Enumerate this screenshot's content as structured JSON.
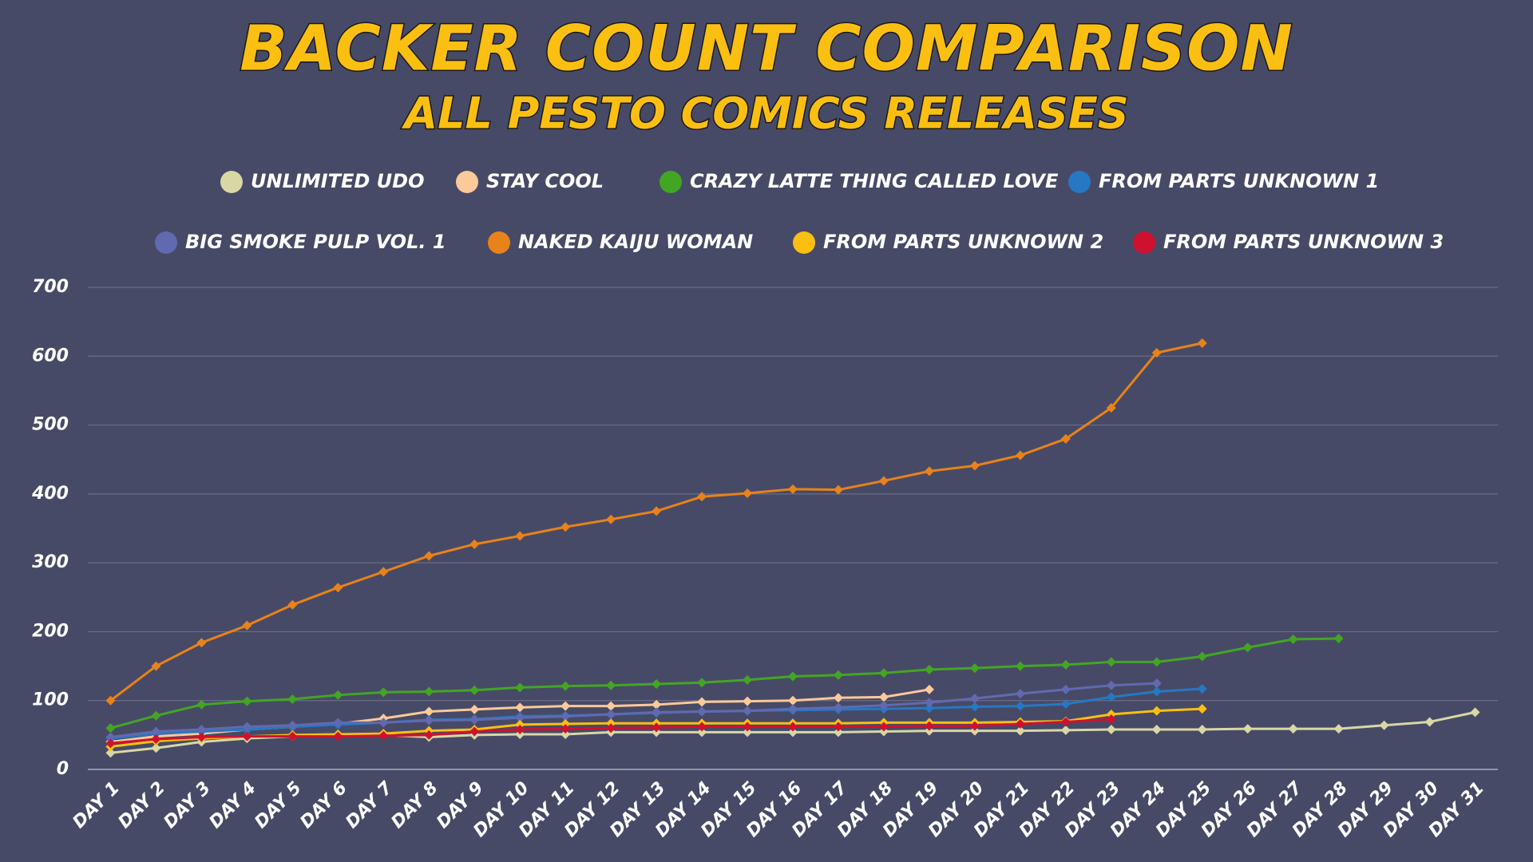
{
  "chart_data": {
    "type": "line",
    "title": "BACKER COUNT COMPARISON",
    "subtitle": "ALL PESTO COMICS RELEASES",
    "categories": [
      "DAY 1",
      "DAY 2",
      "DAY 3",
      "DAY 4",
      "DAY 5",
      "DAY 6",
      "DAY 7",
      "DAY 8",
      "DAY 9",
      "DAY 10",
      "DAY 11",
      "DAY 12",
      "DAY 13",
      "DAY 14",
      "DAY 15",
      "DAY 16",
      "DAY 17",
      "DAY 18",
      "DAY 19",
      "DAY 20",
      "DAY 21",
      "DAY 22",
      "DAY 23",
      "DAY 24",
      "DAY 25",
      "DAY 26",
      "DAY 27",
      "DAY 28",
      "DAY 29",
      "DAY 30",
      "DAY 31"
    ],
    "ylim": [
      0,
      700
    ],
    "yticks": [
      0,
      100,
      200,
      300,
      400,
      500,
      600,
      700
    ],
    "grid": true,
    "legend": "top",
    "series": [
      {
        "name": "UNLIMITED UDO",
        "color": "#d9d7a6",
        "values": [
          24,
          31,
          40,
          45,
          48,
          50,
          50,
          47,
          50,
          51,
          51,
          54,
          54,
          54,
          54,
          54,
          54,
          55,
          56,
          56,
          56,
          57,
          58,
          58,
          58,
          59,
          59,
          59,
          64,
          69,
          83
        ]
      },
      {
        "name": "STAY COOL",
        "color": "#fbc99a",
        "values": [
          40,
          48,
          52,
          58,
          62,
          66,
          74,
          84,
          87,
          90,
          92,
          92,
          94,
          98,
          99,
          100,
          104,
          105,
          116,
          null,
          null,
          null,
          null,
          null,
          null,
          null,
          null,
          null,
          null,
          null,
          null
        ]
      },
      {
        "name": "CRAZY LATTE THING CALLED LOVE",
        "color": "#43a524",
        "values": [
          60,
          78,
          94,
          99,
          102,
          108,
          112,
          113,
          115,
          119,
          121,
          122,
          124,
          126,
          130,
          135,
          137,
          140,
          145,
          147,
          150,
          152,
          156,
          156,
          164,
          177,
          189,
          190,
          null,
          null,
          null
        ]
      },
      {
        "name": "FROM PARTS UNKNOWN 1",
        "color": "#2678c2",
        "values": [
          45,
          52,
          55,
          58,
          62,
          65,
          68,
          72,
          73,
          77,
          78,
          80,
          82,
          84,
          85,
          86,
          87,
          88,
          89,
          91,
          92,
          95,
          105,
          113,
          117,
          null,
          null,
          null,
          null,
          null,
          null
        ]
      },
      {
        "name": "BIG SMOKE PULP VOL. 1",
        "color": "#6169b0",
        "values": [
          47,
          55,
          58,
          62,
          64,
          68,
          68,
          71,
          72,
          75,
          77,
          80,
          83,
          84,
          85,
          88,
          90,
          93,
          97,
          103,
          110,
          116,
          122,
          125,
          null,
          null,
          null,
          null,
          null,
          null,
          null
        ]
      },
      {
        "name": "NAKED KAIJU WOMAN",
        "color": "#e8821a",
        "values": [
          100,
          150,
          184,
          209,
          239,
          264,
          287,
          310,
          327,
          339,
          352,
          363,
          375,
          396,
          401,
          407,
          406,
          419,
          433,
          441,
          456,
          480,
          525,
          605,
          619,
          null,
          null,
          null,
          null,
          null,
          null
        ]
      },
      {
        "name": "FROM PARTS UNKNOWN 2",
        "color": "#fbbf12",
        "values": [
          33,
          41,
          45,
          48,
          50,
          51,
          52,
          56,
          58,
          65,
          66,
          67,
          67,
          67,
          67,
          67,
          67,
          68,
          68,
          68,
          69,
          70,
          80,
          85,
          88,
          null,
          null,
          null,
          null,
          null,
          null
        ]
      },
      {
        "name": "FROM PARTS UNKNOWN 3",
        "color": "#cf1130",
        "values": [
          38,
          44,
          47,
          48,
          48,
          48,
          49,
          50,
          55,
          58,
          59,
          60,
          61,
          62,
          62,
          62,
          62,
          62,
          63,
          63,
          66,
          69,
          73,
          null,
          null,
          null,
          null,
          null,
          null,
          null,
          null
        ]
      }
    ]
  }
}
